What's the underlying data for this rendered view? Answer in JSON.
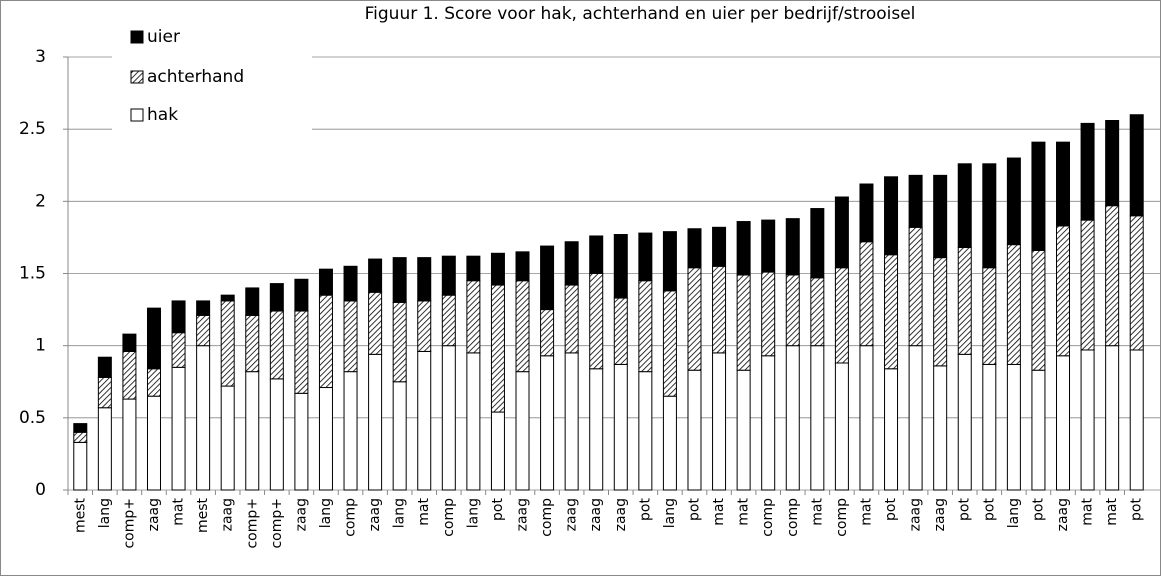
{
  "chart_data": {
    "type": "stacked_bar",
    "title": "Figuur  1. Score voor hak, achterhand en uier per bedrijf/strooisel",
    "categories": [
      "mest",
      "lang",
      "comp+",
      "zaag",
      "mat",
      "mest",
      "zaag",
      "comp+",
      "comp+",
      "zaag",
      "lang",
      "comp",
      "zaag",
      "lang",
      "mat",
      "comp",
      "lang",
      "pot",
      "zaag",
      "comp",
      "zaag",
      "zaag",
      "zaag",
      "pot",
      "lang",
      "pot",
      "mat",
      "mat",
      "comp",
      "comp",
      "mat",
      "comp",
      "mat",
      "pot",
      "zaag",
      "zaag",
      "pot",
      "pot",
      "lang",
      "pot",
      "zaag",
      "mat",
      "mat",
      "pot"
    ],
    "series": [
      {
        "name": "hak",
        "color": "#ffffff",
        "hatched": false,
        "values": [
          0.33,
          0.57,
          0.63,
          0.65,
          0.85,
          1.0,
          0.72,
          0.82,
          0.77,
          0.67,
          0.71,
          0.82,
          0.94,
          0.75,
          0.96,
          1.0,
          0.95,
          0.54,
          0.82,
          0.93,
          0.95,
          0.84,
          0.87,
          0.82,
          0.65,
          0.83,
          0.95,
          0.83,
          0.93,
          1.0,
          1.0,
          0.88,
          1.0,
          0.84,
          1.0,
          0.86,
          0.94,
          0.87,
          0.87,
          0.83,
          0.93,
          0.97,
          1.0,
          0.97
        ]
      },
      {
        "name": "achterhand",
        "color": "#ffffff",
        "hatched": true,
        "values": [
          0.07,
          0.21,
          0.33,
          0.19,
          0.24,
          0.21,
          0.59,
          0.39,
          0.47,
          0.57,
          0.64,
          0.49,
          0.43,
          0.55,
          0.35,
          0.35,
          0.5,
          0.88,
          0.63,
          0.32,
          0.47,
          0.66,
          0.46,
          0.63,
          0.73,
          0.71,
          0.6,
          0.66,
          0.58,
          0.49,
          0.47,
          0.66,
          0.72,
          0.79,
          0.82,
          0.75,
          0.74,
          0.67,
          0.83,
          0.83,
          0.9,
          0.9,
          0.97,
          0.93
        ]
      },
      {
        "name": "uier",
        "color": "#000000",
        "hatched": false,
        "values": [
          0.06,
          0.14,
          0.12,
          0.42,
          0.22,
          0.1,
          0.04,
          0.19,
          0.19,
          0.22,
          0.18,
          0.24,
          0.23,
          0.31,
          0.3,
          0.27,
          0.17,
          0.22,
          0.2,
          0.44,
          0.3,
          0.26,
          0.44,
          0.33,
          0.41,
          0.27,
          0.27,
          0.37,
          0.36,
          0.39,
          0.48,
          0.49,
          0.4,
          0.54,
          0.36,
          0.57,
          0.58,
          0.72,
          0.6,
          0.75,
          0.58,
          0.67,
          0.59,
          0.7
        ]
      }
    ],
    "ylim": [
      0,
      3
    ],
    "yticks": [
      0,
      0.5,
      1,
      1.5,
      2,
      2.5,
      3
    ],
    "grid": true,
    "legend": "top-left"
  }
}
